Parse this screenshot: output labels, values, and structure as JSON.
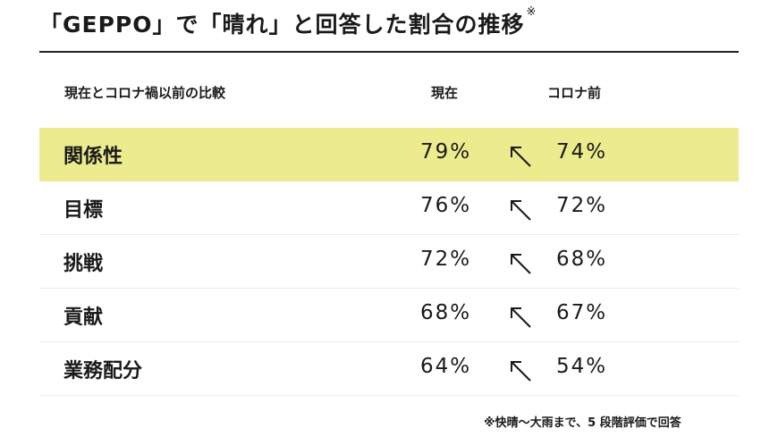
{
  "title": "「GEPPO」で「晴れ」と回答した割合の推移",
  "title_mark": "※",
  "chart_data": {
    "type": "table",
    "columns": {
      "label": "現在とコロナ禍以前の比較",
      "current": "現在",
      "before": "コロナ前"
    },
    "rows": [
      {
        "label": "関係性",
        "current": "79%",
        "before": "74%",
        "highlight": true
      },
      {
        "label": "目標",
        "current": "76%",
        "before": "72%",
        "highlight": false
      },
      {
        "label": "挑戦",
        "current": "72%",
        "before": "68%",
        "highlight": false
      },
      {
        "label": "貢献",
        "current": "68%",
        "before": "67%",
        "highlight": false
      },
      {
        "label": "業務配分",
        "current": "64%",
        "before": "54%",
        "highlight": false
      }
    ],
    "highlight_color": "#ecec8e",
    "arrow_icon": "arrow-up-left-icon"
  },
  "footnote": "※快晴～大雨まで、5 段階評価で回答"
}
